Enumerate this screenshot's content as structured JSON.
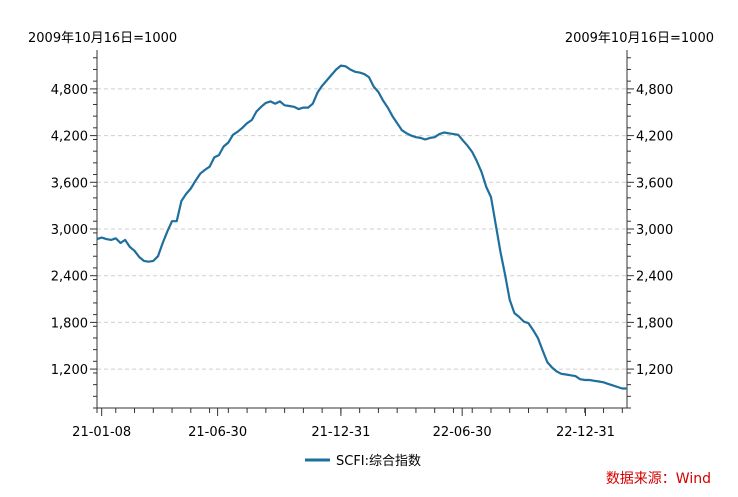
{
  "chart_data": {
    "type": "line",
    "unit_left": "2009年10月16日=1000",
    "unit_right": "2009年10月16日=1000",
    "ylim": [
      700,
      5300
    ],
    "yticks": [
      1200,
      1800,
      2400,
      3000,
      3600,
      4200,
      4800
    ],
    "ytick_labels": [
      "1,200",
      "1,800",
      "2,400",
      "3,000",
      "3,600",
      "4,200",
      "4,800"
    ],
    "xlim": [
      "2021-01-01",
      "2023-03-03"
    ],
    "xticks": [
      "2021-01-08",
      "2021-06-30",
      "2021-12-31",
      "2022-06-30",
      "2022-12-31"
    ],
    "xtick_labels": [
      "21-01-08",
      "21-06-30",
      "21-12-31",
      "22-06-30",
      "22-12-31"
    ],
    "grid": "horizontal-dashed",
    "legend_position": "bottom-center",
    "source": "数据来源：Wind",
    "series": [
      {
        "name": "SCFI:综合指数",
        "color": "#1f6f9e",
        "points": [
          [
            "2021-01-01",
            2870
          ],
          [
            "2021-01-08",
            2890
          ],
          [
            "2021-01-15",
            2870
          ],
          [
            "2021-01-22",
            2860
          ],
          [
            "2021-01-29",
            2880
          ],
          [
            "2021-02-05",
            2820
          ],
          [
            "2021-02-12",
            2860
          ],
          [
            "2021-02-19",
            2770
          ],
          [
            "2021-02-26",
            2720
          ],
          [
            "2021-03-05",
            2640
          ],
          [
            "2021-03-12",
            2590
          ],
          [
            "2021-03-19",
            2580
          ],
          [
            "2021-03-26",
            2590
          ],
          [
            "2021-04-02",
            2650
          ],
          [
            "2021-04-09",
            2820
          ],
          [
            "2021-04-16",
            2970
          ],
          [
            "2021-04-23",
            3100
          ],
          [
            "2021-04-30",
            3100
          ],
          [
            "2021-05-07",
            3360
          ],
          [
            "2021-05-14",
            3450
          ],
          [
            "2021-05-21",
            3520
          ],
          [
            "2021-05-28",
            3620
          ],
          [
            "2021-06-04",
            3710
          ],
          [
            "2021-06-11",
            3760
          ],
          [
            "2021-06-18",
            3800
          ],
          [
            "2021-06-25",
            3920
          ],
          [
            "2021-07-02",
            3950
          ],
          [
            "2021-07-09",
            4060
          ],
          [
            "2021-07-16",
            4110
          ],
          [
            "2021-07-23",
            4210
          ],
          [
            "2021-07-30",
            4250
          ],
          [
            "2021-08-06",
            4300
          ],
          [
            "2021-08-13",
            4360
          ],
          [
            "2021-08-20",
            4400
          ],
          [
            "2021-08-27",
            4510
          ],
          [
            "2021-09-03",
            4570
          ],
          [
            "2021-09-10",
            4620
          ],
          [
            "2021-09-17",
            4640
          ],
          [
            "2021-09-24",
            4610
          ],
          [
            "2021-10-01",
            4640
          ],
          [
            "2021-10-08",
            4590
          ],
          [
            "2021-10-15",
            4580
          ],
          [
            "2021-10-22",
            4570
          ],
          [
            "2021-10-29",
            4540
          ],
          [
            "2021-11-05",
            4560
          ],
          [
            "2021-11-12",
            4560
          ],
          [
            "2021-11-19",
            4610
          ],
          [
            "2021-11-26",
            4750
          ],
          [
            "2021-12-03",
            4840
          ],
          [
            "2021-12-10",
            4910
          ],
          [
            "2021-12-17",
            4980
          ],
          [
            "2021-12-24",
            5050
          ],
          [
            "2021-12-31",
            5100
          ],
          [
            "2022-01-07",
            5090
          ],
          [
            "2022-01-14",
            5050
          ],
          [
            "2022-01-21",
            5020
          ],
          [
            "2022-01-28",
            5010
          ],
          [
            "2022-02-04",
            4990
          ],
          [
            "2022-02-11",
            4950
          ],
          [
            "2022-02-18",
            4830
          ],
          [
            "2022-02-25",
            4760
          ],
          [
            "2022-03-04",
            4650
          ],
          [
            "2022-03-11",
            4560
          ],
          [
            "2022-03-18",
            4450
          ],
          [
            "2022-03-25",
            4360
          ],
          [
            "2022-04-01",
            4270
          ],
          [
            "2022-04-08",
            4230
          ],
          [
            "2022-04-15",
            4200
          ],
          [
            "2022-04-22",
            4180
          ],
          [
            "2022-04-29",
            4170
          ],
          [
            "2022-05-06",
            4150
          ],
          [
            "2022-05-13",
            4170
          ],
          [
            "2022-05-20",
            4180
          ],
          [
            "2022-05-27",
            4220
          ],
          [
            "2022-06-03",
            4240
          ],
          [
            "2022-06-10",
            4230
          ],
          [
            "2022-06-17",
            4220
          ],
          [
            "2022-06-24",
            4210
          ],
          [
            "2022-07-01",
            4140
          ],
          [
            "2022-07-08",
            4070
          ],
          [
            "2022-07-15",
            3990
          ],
          [
            "2022-07-22",
            3870
          ],
          [
            "2022-07-29",
            3730
          ],
          [
            "2022-08-05",
            3540
          ],
          [
            "2022-08-12",
            3410
          ],
          [
            "2022-08-19",
            3060
          ],
          [
            "2022-08-26",
            2710
          ],
          [
            "2022-09-02",
            2410
          ],
          [
            "2022-09-09",
            2090
          ],
          [
            "2022-09-16",
            1920
          ],
          [
            "2022-09-23",
            1870
          ],
          [
            "2022-09-30",
            1810
          ],
          [
            "2022-10-07",
            1790
          ],
          [
            "2022-10-14",
            1700
          ],
          [
            "2022-10-21",
            1600
          ],
          [
            "2022-10-28",
            1440
          ],
          [
            "2022-11-04",
            1290
          ],
          [
            "2022-11-11",
            1220
          ],
          [
            "2022-11-18",
            1170
          ],
          [
            "2022-11-25",
            1140
          ],
          [
            "2022-12-02",
            1130
          ],
          [
            "2022-12-09",
            1120
          ],
          [
            "2022-12-16",
            1110
          ],
          [
            "2022-12-23",
            1070
          ],
          [
            "2022-12-30",
            1060
          ],
          [
            "2023-01-06",
            1060
          ],
          [
            "2023-01-13",
            1050
          ],
          [
            "2023-01-20",
            1040
          ],
          [
            "2023-01-27",
            1030
          ],
          [
            "2023-02-03",
            1010
          ],
          [
            "2023-02-10",
            990
          ],
          [
            "2023-02-17",
            970
          ],
          [
            "2023-02-24",
            950
          ],
          [
            "2023-03-03",
            950
          ]
        ]
      }
    ]
  }
}
